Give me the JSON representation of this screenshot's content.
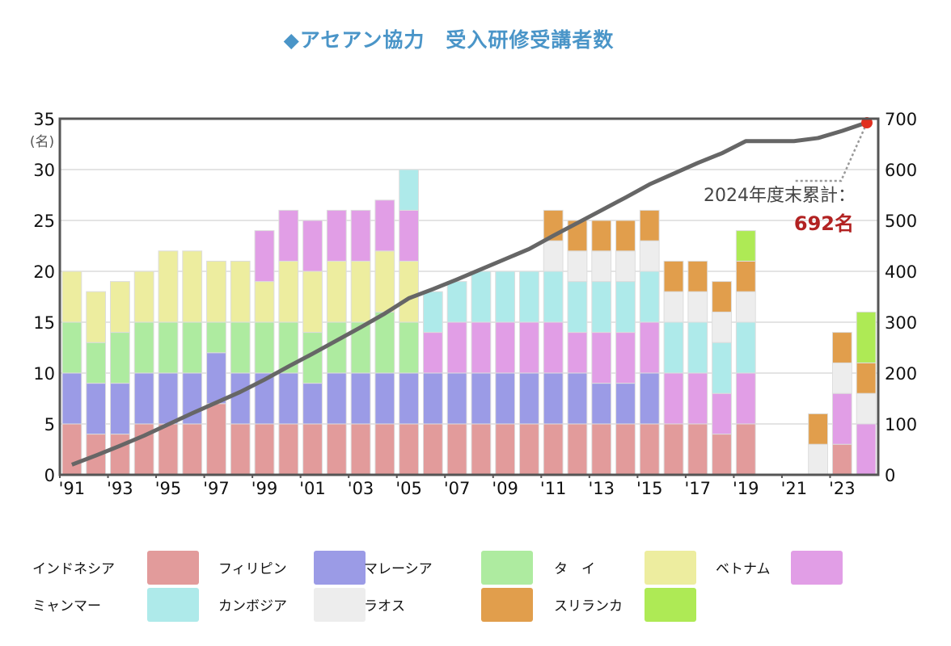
{
  "title": "◆アセアン協力　受入研修受講者数",
  "chart_data": {
    "type": "bar",
    "stacked": true,
    "title": "◆アセアン協力　受入研修受講者数",
    "ylabel": "(名)",
    "ylim": [
      0,
      35
    ],
    "yticks": [
      0,
      5,
      10,
      15,
      20,
      25,
      30,
      35
    ],
    "y2lim": [
      0,
      700
    ],
    "y2ticks": [
      0,
      100,
      200,
      300,
      400,
      500,
      600,
      700
    ],
    "grid": true,
    "categories": [
      1991,
      1992,
      1993,
      1994,
      1995,
      1996,
      1997,
      1998,
      1999,
      2000,
      2001,
      2002,
      2003,
      2004,
      2005,
      2006,
      2007,
      2008,
      2009,
      2010,
      2011,
      2012,
      2013,
      2014,
      2015,
      2016,
      2017,
      2018,
      2019,
      2020,
      2021,
      2022,
      2023,
      2024
    ],
    "xtick_labels": [
      "'91",
      "'93",
      "'95",
      "'97",
      "'99",
      "'01",
      "'03",
      "'05",
      "'07",
      "'09",
      "'11",
      "'13",
      "'15",
      "'17",
      "'19",
      "'21",
      "'23"
    ],
    "series": [
      {
        "name": "インドネシア",
        "color": "#e29b9b",
        "values": [
          5,
          4,
          4,
          5,
          5,
          5,
          7,
          5,
          5,
          5,
          5,
          5,
          5,
          5,
          5,
          5,
          5,
          5,
          5,
          5,
          5,
          5,
          5,
          5,
          5,
          5,
          5,
          4,
          5,
          0,
          0,
          0,
          3,
          0
        ]
      },
      {
        "name": "フィリピン",
        "color": "#9b9be6",
        "values": [
          5,
          5,
          5,
          5,
          5,
          5,
          5,
          5,
          5,
          5,
          4,
          5,
          5,
          5,
          5,
          5,
          5,
          5,
          5,
          5,
          5,
          5,
          4,
          4,
          5,
          0,
          0,
          0,
          0,
          0,
          0,
          0,
          0,
          0
        ]
      },
      {
        "name": "マレーシア",
        "color": "#aeeba0",
        "values": [
          5,
          4,
          5,
          5,
          5,
          5,
          3,
          5,
          5,
          5,
          5,
          5,
          5,
          6,
          5,
          0,
          0,
          0,
          0,
          0,
          0,
          0,
          0,
          0,
          0,
          0,
          0,
          0,
          0,
          0,
          0,
          0,
          0,
          0
        ]
      },
      {
        "name": "タ　イ",
        "color": "#eded9f",
        "values": [
          5,
          5,
          5,
          5,
          7,
          7,
          6,
          6,
          4,
          6,
          6,
          6,
          6,
          6,
          6,
          0,
          0,
          0,
          0,
          0,
          0,
          0,
          0,
          0,
          0,
          0,
          0,
          0,
          0,
          0,
          0,
          0,
          0,
          0
        ]
      },
      {
        "name": "ベトナム",
        "color": "#e19ee6",
        "values": [
          0,
          0,
          0,
          0,
          0,
          0,
          0,
          0,
          5,
          5,
          5,
          5,
          5,
          5,
          5,
          4,
          5,
          5,
          5,
          5,
          5,
          4,
          5,
          5,
          5,
          5,
          5,
          4,
          5,
          0,
          0,
          0,
          5,
          5
        ]
      },
      {
        "name": "ミャンマー",
        "color": "#aeeaea",
        "values": [
          0,
          0,
          0,
          0,
          0,
          0,
          0,
          0,
          0,
          0,
          0,
          0,
          0,
          0,
          4,
          4,
          4,
          5,
          5,
          5,
          5,
          5,
          5,
          5,
          5,
          5,
          5,
          5,
          5,
          0,
          0,
          0,
          0,
          0
        ]
      },
      {
        "name": "カンボジア",
        "color": "#ededed",
        "values": [
          0,
          0,
          0,
          0,
          0,
          0,
          0,
          0,
          0,
          0,
          0,
          0,
          0,
          0,
          0,
          0,
          0,
          0,
          0,
          0,
          3,
          3,
          3,
          3,
          3,
          3,
          3,
          3,
          3,
          0,
          0,
          3,
          3,
          3
        ]
      },
      {
        "name": "ラオス",
        "color": "#e19e4c",
        "values": [
          0,
          0,
          0,
          0,
          0,
          0,
          0,
          0,
          0,
          0,
          0,
          0,
          0,
          0,
          0,
          0,
          0,
          0,
          0,
          0,
          3,
          3,
          3,
          3,
          3,
          3,
          3,
          3,
          3,
          0,
          0,
          3,
          3,
          3
        ]
      },
      {
        "name": "スリランカ",
        "color": "#aeea55",
        "values": [
          0,
          0,
          0,
          0,
          0,
          0,
          0,
          0,
          0,
          0,
          0,
          0,
          0,
          0,
          0,
          0,
          0,
          0,
          0,
          0,
          0,
          0,
          0,
          0,
          0,
          0,
          0,
          0,
          3,
          0,
          0,
          0,
          0,
          5
        ]
      }
    ],
    "cumulative_line": {
      "name": "累計",
      "axis": "right",
      "color": "#666666",
      "values": [
        20,
        38,
        57,
        77,
        99,
        121,
        142,
        163,
        187,
        213,
        238,
        264,
        290,
        317,
        347,
        365,
        384,
        404,
        424,
        444,
        470,
        495,
        520,
        545,
        571,
        592,
        613,
        632,
        656,
        656,
        656,
        662,
        676,
        692
      ]
    },
    "annotation": {
      "label": "2024年度末累計：",
      "value": "692名",
      "marker_color": "#e03020"
    },
    "legend": "bottom"
  }
}
